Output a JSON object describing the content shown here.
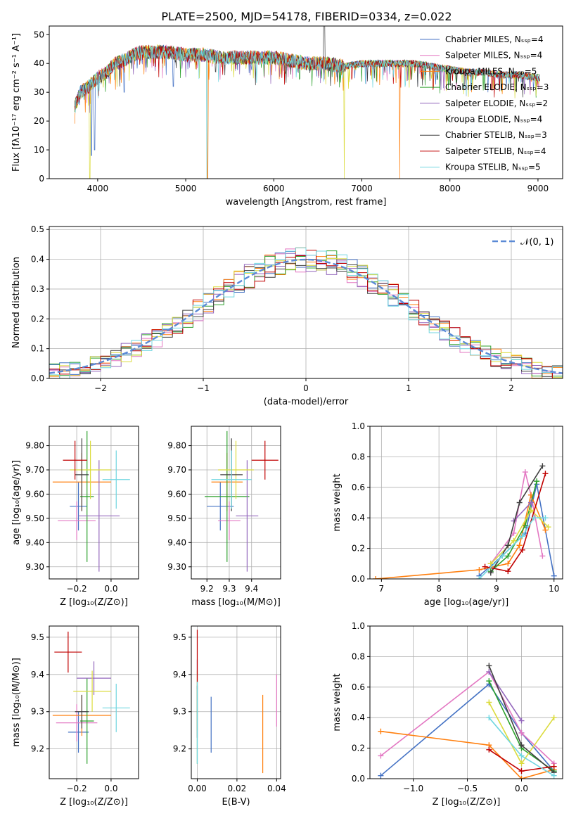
{
  "figure_title": "PLATE=2500, MJD=54178, FIBERID=0334, z=0.022",
  "series_colors": [
    "#4472c4",
    "#e377c2",
    "#ff7f0e",
    "#2ca02c",
    "#9467bd",
    "#dbdb3d",
    "#404040",
    "#c00000",
    "#70d6e0"
  ],
  "chart_data": [
    {
      "id": "spectrum",
      "type": "line",
      "xlabel": "wavelength [Angstrom, rest frame]",
      "ylabel": "Flux [fλ10⁻¹⁷ erg cm⁻² s⁻¹ A⁻¹]",
      "xlim": [
        3450,
        9280
      ],
      "ylim": [
        0,
        53
      ],
      "xticks": [
        4000,
        5000,
        6000,
        7000,
        8000,
        9000
      ],
      "yticks": [
        0,
        10,
        20,
        30,
        40,
        50
      ],
      "grid": false,
      "legend_position": "upper-right",
      "legend": [
        "Chabrier MILES, Nₛₛₚ=4",
        "Salpeter MILES, Nₛₛₚ=4",
        "Kroupa MILES, Nₛₛₚ=5",
        "Chabrier ELODIE, Nₛₛₚ=3",
        "Salpeter ELODIE, Nₛₛₚ=2",
        "Kroupa ELODIE, Nₛₛₚ=4",
        "Chabrier STELIB, Nₛₛₚ=3",
        "Salpeter STELIB, Nₛₛₚ=4",
        "Kroupa STELIB, Nₛₛₚ=5"
      ],
      "continuum_x": [
        3740,
        3800,
        3900,
        4000,
        4100,
        4200,
        4300,
        4400,
        4500,
        4600,
        4800,
        5000,
        5200,
        5400,
        5600,
        5800,
        6000,
        6200,
        6400,
        6600,
        6800,
        7000,
        7200,
        7400,
        7600,
        7800,
        8000,
        8200,
        8400,
        8600,
        8800,
        9000
      ],
      "continuum_y": [
        25,
        30,
        32,
        35,
        37,
        40,
        41,
        43,
        44,
        44,
        44,
        43,
        43,
        42,
        42,
        42,
        42,
        41,
        40,
        40,
        39,
        40,
        40,
        40,
        40,
        39,
        38,
        37,
        37,
        36,
        36,
        35
      ]
    },
    {
      "id": "residuals",
      "type": "histogram",
      "xlabel": "(data-model)/error",
      "ylabel": "Normed distribution",
      "xlim": [
        -2.5,
        2.5
      ],
      "ylim": [
        0,
        0.51
      ],
      "xticks": [
        -2,
        -1,
        0,
        1,
        2
      ],
      "yticks": [
        0.0,
        0.1,
        0.2,
        0.3,
        0.4,
        0.5
      ],
      "grid": true,
      "legend_position": "upper-right",
      "reference_label": "𝒩(0, 1)",
      "bin_width": 0.1,
      "bin_start": -2.5
    },
    {
      "id": "age-vs-Z",
      "type": "errorbar",
      "xlabel": "Z [log₁₀(Z/Z⊙)]",
      "ylabel": "age  [log₁₀(age/yr)]",
      "xlim": [
        -0.36,
        0.16
      ],
      "ylim": [
        9.25,
        9.88
      ],
      "xticks": [
        -0.2,
        0.0
      ],
      "yticks": [
        9.3,
        9.4,
        9.5,
        9.6,
        9.7,
        9.8
      ],
      "grid": true,
      "points": [
        {
          "x": -0.19,
          "xe": 0.05,
          "y": 9.55,
          "ye": 0.1
        },
        {
          "x": -0.2,
          "xe": 0.11,
          "y": 9.49,
          "ye": 0.08
        },
        {
          "x": -0.17,
          "xe": 0.17,
          "y": 9.65,
          "ye": 0.12
        },
        {
          "x": -0.14,
          "xe": 0.04,
          "y": 9.59,
          "ye": 0.27
        },
        {
          "x": -0.07,
          "xe": 0.12,
          "y": 9.51,
          "ye": 0.23
        },
        {
          "x": -0.12,
          "xe": 0.12,
          "y": 9.7,
          "ye": 0.12
        },
        {
          "x": -0.17,
          "xe": 0.04,
          "y": 9.68,
          "ye": 0.15
        },
        {
          "x": -0.21,
          "xe": 0.07,
          "y": 9.74,
          "ye": 0.08
        },
        {
          "x": 0.03,
          "xe": 0.08,
          "y": 9.66,
          "ye": 0.12
        }
      ]
    },
    {
      "id": "age-vs-mass",
      "type": "errorbar",
      "xlabel": "mass [log₁₀(M/M⊙)]",
      "ylabel": "",
      "xlim": [
        9.13,
        9.53
      ],
      "ylim": [
        9.25,
        9.88
      ],
      "xticks": [
        9.2,
        9.3,
        9.4
      ],
      "yticks": [
        9.3,
        9.4,
        9.5,
        9.6,
        9.7,
        9.8
      ],
      "grid": true,
      "points": [
        {
          "x": 9.26,
          "xe": 0.06,
          "y": 9.55,
          "ye": 0.1
        },
        {
          "x": 9.3,
          "xe": 0.05,
          "y": 9.49,
          "ye": 0.08
        },
        {
          "x": 9.29,
          "xe": 0.07,
          "y": 9.65,
          "ye": 0.12
        },
        {
          "x": 9.29,
          "xe": 0.1,
          "y": 9.59,
          "ye": 0.27
        },
        {
          "x": 9.38,
          "xe": 0.05,
          "y": 9.51,
          "ye": 0.23
        },
        {
          "x": 9.33,
          "xe": 0.08,
          "y": 9.7,
          "ye": 0.12
        },
        {
          "x": 9.31,
          "xe": 0.05,
          "y": 9.68,
          "ye": 0.15
        },
        {
          "x": 9.46,
          "xe": 0.06,
          "y": 9.74,
          "ye": 0.08
        },
        {
          "x": 9.31,
          "xe": 0.09,
          "y": 9.66,
          "ye": 0.12
        }
      ]
    },
    {
      "id": "weight-vs-age",
      "type": "line",
      "xlabel": "age  [log₁₀(age/yr)]",
      "ylabel": "mass weight",
      "xlim": [
        6.8,
        10.15
      ],
      "ylim": [
        0,
        1.0
      ],
      "xticks": [
        7,
        8,
        9,
        10
      ],
      "yticks": [
        0.0,
        0.2,
        0.4,
        0.6,
        0.8,
        1.0
      ],
      "grid": true,
      "series": [
        {
          "x": [
            8.7,
            9.1,
            9.5,
            9.7,
            10.0
          ],
          "y": [
            0.02,
            0.15,
            0.3,
            0.62,
            0.02
          ]
        },
        {
          "x": [
            8.9,
            9.3,
            9.5,
            9.6,
            9.8
          ],
          "y": [
            0.1,
            0.3,
            0.7,
            0.55,
            0.15
          ]
        },
        {
          "x": [
            6.9,
            8.7,
            9.2,
            9.4,
            9.6,
            9.85
          ],
          "y": [
            0.0,
            0.06,
            0.1,
            0.22,
            0.55,
            0.32
          ]
        },
        {
          "x": [
            8.9,
            9.2,
            9.5,
            9.7
          ],
          "y": [
            0.05,
            0.15,
            0.35,
            0.64
          ]
        },
        {
          "x": [
            9.3,
            9.6
          ],
          "y": [
            0.38,
            0.5
          ]
        },
        {
          "x": [
            8.9,
            9.3,
            9.6,
            9.9
          ],
          "y": [
            0.1,
            0.25,
            0.45,
            0.34
          ]
        },
        {
          "x": [
            8.9,
            9.2,
            9.4,
            9.8
          ],
          "y": [
            0.04,
            0.22,
            0.5,
            0.74
          ]
        },
        {
          "x": [
            8.8,
            9.2,
            9.45,
            9.85
          ],
          "y": [
            0.08,
            0.05,
            0.19,
            0.69
          ]
        },
        {
          "x": [
            8.7,
            9.1,
            9.45,
            9.65,
            9.85
          ],
          "y": [
            0.0,
            0.15,
            0.28,
            0.4,
            0.4
          ]
        }
      ]
    },
    {
      "id": "mass-vs-Z",
      "type": "errorbar",
      "xlabel": "Z [log₁₀(Z/Z⊙)]",
      "ylabel": "mass [log₁₀(M/M⊙)]",
      "xlim": [
        -0.36,
        0.16
      ],
      "ylim": [
        9.12,
        9.53
      ],
      "xticks": [
        -0.2,
        0.0
      ],
      "yticks": [
        9.2,
        9.3,
        9.4,
        9.5
      ],
      "grid": true,
      "points": [
        {
          "x": -0.19,
          "xe": 0.06,
          "y": 9.245,
          "ye": 0.055
        },
        {
          "x": -0.2,
          "xe": 0.12,
          "y": 9.27,
          "ye": 0.05
        },
        {
          "x": -0.17,
          "xe": 0.17,
          "y": 9.29,
          "ye": 0.055
        },
        {
          "x": -0.14,
          "xe": 0.04,
          "y": 9.275,
          "ye": 0.115
        },
        {
          "x": -0.1,
          "xe": 0.1,
          "y": 9.39,
          "ye": 0.045
        },
        {
          "x": -0.11,
          "xe": 0.11,
          "y": 9.355,
          "ye": 0.055
        },
        {
          "x": -0.17,
          "xe": 0.04,
          "y": 9.3,
          "ye": 0.045
        },
        {
          "x": -0.25,
          "xe": 0.08,
          "y": 9.46,
          "ye": 0.055
        },
        {
          "x": 0.03,
          "xe": 0.08,
          "y": 9.31,
          "ye": 0.065
        }
      ]
    },
    {
      "id": "mass-vs-EBV",
      "type": "errorbar",
      "xlabel": "E(B-V)",
      "ylabel": "",
      "xlim": [
        -0.003,
        0.042
      ],
      "ylim": [
        9.12,
        9.53
      ],
      "xticks": [
        0.0,
        0.02,
        0.04
      ],
      "yticks": [
        9.2,
        9.3,
        9.4,
        9.5
      ],
      "grid": true,
      "points": [
        {
          "x": 0.007,
          "xe": 0,
          "y": 9.265,
          "ye": 0.075
        },
        {
          "x": 0.04,
          "xe": 0,
          "y": 9.33,
          "ye": 0.07
        },
        {
          "x": 0.033,
          "xe": 0,
          "y": 9.24,
          "ye": 0.105
        },
        {
          "x": 0.0,
          "xe": 0,
          "y": 9.27,
          "ye": 0.11
        },
        {
          "x": 0.0,
          "xe": 0,
          "y": 9.4,
          "ye": 0.04
        },
        {
          "x": 0.0,
          "xe": 0,
          "y": 9.33,
          "ye": 0.08
        },
        {
          "x": 0.0,
          "xe": 0,
          "y": 9.3,
          "ye": 0.07
        },
        {
          "x": 0.0,
          "xe": 0,
          "y": 9.45,
          "ye": 0.07
        },
        {
          "x": 0.0,
          "xe": 0,
          "y": 9.27,
          "ye": 0.11
        }
      ]
    },
    {
      "id": "weight-vs-Z",
      "type": "line",
      "xlabel": "Z [log₁₀(Z/Z⊙)]",
      "ylabel": "mass weight",
      "xlim": [
        -1.4,
        0.38
      ],
      "ylim": [
        0,
        1.0
      ],
      "xticks": [
        -1.0,
        -0.5,
        0.0
      ],
      "yticks": [
        0.0,
        0.2,
        0.4,
        0.6,
        0.8,
        1.0
      ],
      "grid": true,
      "series": [
        {
          "x": [
            -1.3,
            -0.3,
            0.0,
            0.3
          ],
          "y": [
            0.02,
            0.62,
            0.3,
            0.05
          ]
        },
        {
          "x": [
            -1.3,
            -0.3,
            0.0,
            0.3
          ],
          "y": [
            0.15,
            0.7,
            0.3,
            0.1
          ]
        },
        {
          "x": [
            -1.3,
            -0.3,
            0.0,
            0.3
          ],
          "y": [
            0.31,
            0.22,
            0.0,
            0.06
          ]
        },
        {
          "x": [
            -0.3,
            0.0,
            0.3
          ],
          "y": [
            0.64,
            0.2,
            0.05
          ]
        },
        {
          "x": [
            -0.3,
            0.0
          ],
          "y": [
            0.7,
            0.38
          ]
        },
        {
          "x": [
            -0.3,
            0.0,
            0.3
          ],
          "y": [
            0.5,
            0.1,
            0.4
          ]
        },
        {
          "x": [
            -0.3,
            0.0,
            0.3
          ],
          "y": [
            0.74,
            0.22,
            0.04
          ]
        },
        {
          "x": [
            -0.3,
            0.0,
            0.3
          ],
          "y": [
            0.19,
            0.05,
            0.08
          ]
        },
        {
          "x": [
            -0.3,
            0.0,
            0.3
          ],
          "y": [
            0.4,
            0.15,
            0.02
          ]
        }
      ]
    }
  ]
}
